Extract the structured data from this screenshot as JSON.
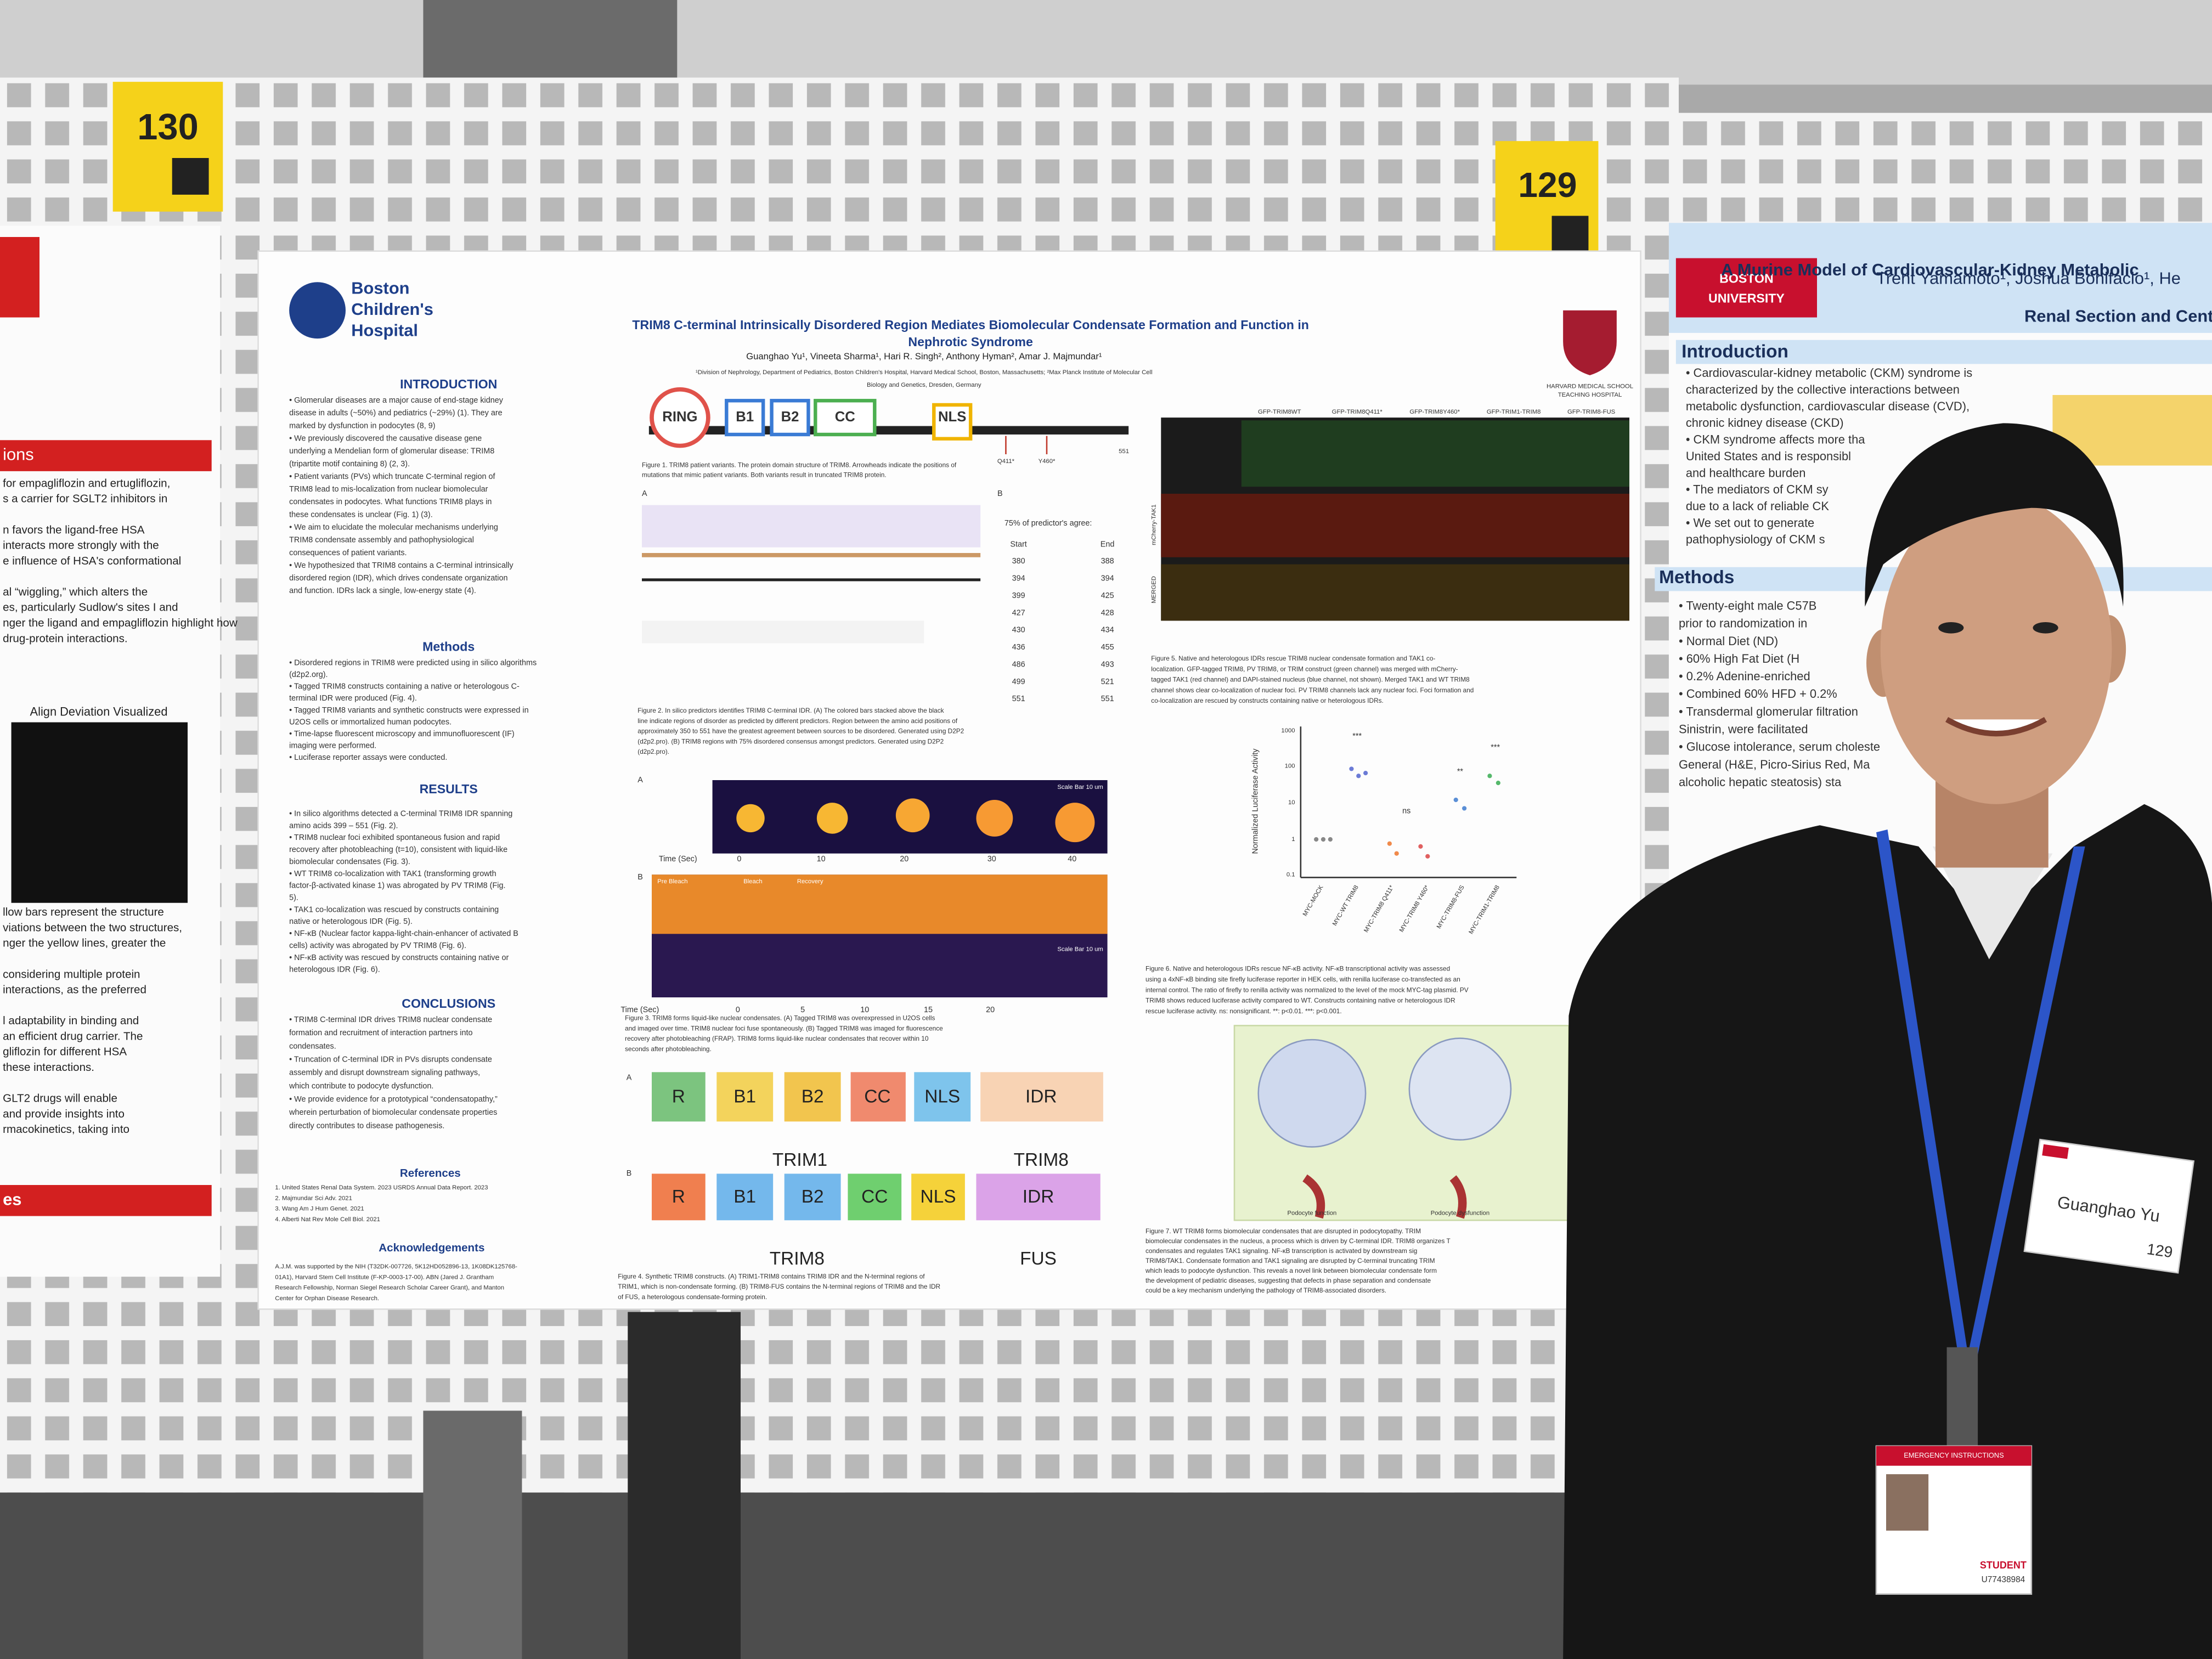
{
  "signs": {
    "left": "130",
    "right": "129"
  },
  "main_poster": {
    "logo": [
      "Boston",
      "Children's",
      "Hospital"
    ],
    "title": [
      "TRIM8 C-terminal Intrinsically Disordered Region Mediates Biomolecular Condensate Formation and Function in",
      "Nephrotic Syndrome"
    ],
    "authors": "Guanghao Yu¹, Vineeta Sharma¹, Hari R. Singh², Anthony Hyman², Amar J. Majmundar¹",
    "affiliation": [
      "¹Division of Nephrology, Department of Pediatrics, Boston Children's Hospital, Harvard Medical School, Boston, Massachusetts; ²Max Planck Institute of Molecular Cell",
      "Biology and Genetics, Dresden, Germany"
    ],
    "harvard": [
      "HARVARD MEDICAL SCHOOL",
      "TEACHING HOSPITAL"
    ],
    "introduction": {
      "heading": "INTRODUCTION",
      "lines": [
        "• Glomerular diseases are a major cause of end-stage kidney",
        "disease in adults (~50%) and pediatrics (~29%) (1). They are",
        "marked by dysfunction in podocytes (8, 9)",
        "• We previously discovered the causative disease gene",
        "underlying a Mendelian form of glomerular disease: TRIM8",
        "(tripartite motif containing 8) (2, 3).",
        "• Patient variants (PVs) which truncate C-terminal region of",
        "TRIM8 lead to mis-localization from nuclear biomolecular",
        "condensates in podocytes. What functions TRIM8 plays in",
        "these condensates is unclear (Fig. 1) (3).",
        "• We aim to elucidate the molecular mechanisms underlying",
        "TRIM8 condensate assembly and pathophysiological",
        "consequences of patient variants.",
        "• We hypothesized that TRIM8 contains a C-terminal intrinsically",
        "disordered region (IDR), which drives condensate organization",
        "and function. IDRs lack a single, low-energy state (4)."
      ]
    },
    "methods": {
      "heading": "Methods",
      "lines": [
        "• Disordered regions in TRIM8 were predicted using in silico algorithms",
        "(d2p2.org).",
        "• Tagged TRIM8 constructs containing a native or heterologous C-",
        "terminal IDR were produced (Fig. 4).",
        "• Tagged TRIM8 variants and synthetic constructs were expressed in",
        "U2OS cells or immortalized human podocytes.",
        "• Time-lapse fluorescent microscopy and immunofluorescent (IF)",
        "imaging were performed.",
        "• Luciferase reporter assays were conducted."
      ]
    },
    "results": {
      "heading": "RESULTS",
      "lines": [
        "• In silico algorithms detected a C-terminal TRIM8 IDR spanning",
        "amino acids 399 – 551 (Fig. 2).",
        "• TRIM8 nuclear foci exhibited spontaneous fusion and rapid",
        "recovery after photobleaching (t=10), consistent with liquid-like",
        "biomolecular condensates (Fig. 3).",
        "• WT TRIM8 co-localization with TAK1 (transforming growth",
        "factor-β-activated kinase 1) was abrogated by PV TRIM8 (Fig.",
        "5).",
        "• TAK1 co-localization was rescued by constructs containing",
        "native or heterologous IDR (Fig. 5).",
        "• NF-κB (Nuclear factor kappa-light-chain-enhancer of activated B",
        "cells) activity was abrogated by PV TRIM8 (Fig. 6).",
        "• NF-κB activity was rescued by constructs containing native or",
        "heterologous IDR (Fig. 6)."
      ]
    },
    "conclusions": {
      "heading": "CONCLUSIONS",
      "lines": [
        "• TRIM8 C-terminal IDR drives TRIM8 nuclear condensate",
        "formation and recruitment of interaction partners into",
        "condensates.",
        "• Truncation of C-terminal IDR in PVs disrupts condensate",
        "assembly and disrupt downstream signaling pathways,",
        "which contribute to podocyte dysfunction.",
        "• We provide evidence for a prototypical “condensatopathy,”",
        "wherein perturbation of biomolecular condensate properties",
        "directly contributes to disease pathogenesis."
      ]
    },
    "references": {
      "heading": "References",
      "lines": [
        "1. United States Renal Data System. 2023 USRDS Annual Data Report. 2023",
        "2. Majmundar Sci Adv. 2021",
        "3. Wang Am J Hum Genet. 2021",
        "4. Alberti Nat Rev Mole Cell Biol. 2021"
      ]
    },
    "acknowledgements": {
      "heading": "Acknowledgements",
      "lines": [
        "A.J.M. was supported by the NIH (T32DK-007726, 5K12HD052896-13, 1K08DK125768-",
        "01A1), Harvard Stem Cell Institute (F-KP-0003-17-00). ABN (Jared J. Grantham",
        "Research Fellowship, Norman Siegel Research Scholar Career Grant), and Manton",
        "Center for Orphan Disease Research."
      ]
    },
    "figure1": {
      "domains": [
        "RING",
        "B1",
        "B2",
        "CC",
        "NLS"
      ],
      "end": "551",
      "variants": [
        "Q411*",
        "Y460*"
      ],
      "caption": [
        "Figure 1. TRIM8 patient variants. The protein domain structure of TRIM8. Arrowheads indicate the positions of",
        "mutations that mimic patient variants. Both variants result in truncated TRIM8 protein."
      ]
    },
    "figure2": {
      "panels": [
        "A",
        "B"
      ],
      "table_title": "75% of predictor's agree:",
      "columns": [
        "Start",
        "End"
      ],
      "rows": [
        [
          "380",
          "388"
        ],
        [
          "394",
          "394"
        ],
        [
          "399",
          "425"
        ],
        [
          "427",
          "428"
        ],
        [
          "430",
          "434"
        ],
        [
          "436",
          "455"
        ],
        [
          "486",
          "493"
        ],
        [
          "499",
          "521"
        ],
        [
          "551",
          "551"
        ]
      ],
      "caption": [
        "Figure 2. In silico predictors identifies TRIM8 C-terminal IDR. (A) The colored bars stacked above the black",
        "line indicate regions of disorder as predicted by different predictors. Region between the amino acid positions of",
        "approximately 350 to 551 have the greatest agreement between sources to be disordered. Generated using D2P2",
        "(d2p2.pro). (B) TRIM8 regions with 75% disordered consensus amongst predictors. Generated using D2P2",
        "(d2p2.pro)."
      ]
    },
    "figure3": {
      "panels": [
        "A",
        "B"
      ],
      "scale_a": "Scale Bar 10 um",
      "scale_b": "Scale Bar 10 um",
      "time_label": "Time (Sec)",
      "times_a": [
        "0",
        "10",
        "20",
        "30",
        "40"
      ],
      "frames_b": [
        "Pre Bleach",
        "Bleach",
        "Recovery"
      ],
      "times_b": [
        "0",
        "5",
        "10",
        "15",
        "20"
      ],
      "caption": [
        "Figure 3. TRIM8 forms liquid-like nuclear condensates. (A) Tagged TRIM8 was overexpressed in U2OS cells",
        "and imaged over time. TRIM8 nuclear foci fuse spontaneously. (B) Tagged TRIM8 was imaged for fluorescence",
        "recovery after photobleaching (FRAP). TRIM8 forms liquid-like nuclear condensates that recover within 10",
        "seconds after photobleaching."
      ]
    },
    "figure4": {
      "panels": [
        "A",
        "B"
      ],
      "row_a": [
        "R",
        "B1",
        "B2",
        "CC",
        "NLS",
        "IDR"
      ],
      "labels_a": [
        "TRIM1",
        "TRIM8"
      ],
      "row_b": [
        "R",
        "B1",
        "B2",
        "CC",
        "NLS",
        "IDR"
      ],
      "labels_b": [
        "TRIM8",
        "FUS"
      ],
      "caption": [
        "Figure 4. Synthetic TRIM8 constructs. (A) TRIM1-TRIM8 contains TRIM8 IDR and the N-terminal regions of",
        "TRIM1, which is non-condensate forming. (B) TRIM8-FUS contains the N-terminal regions of TRIM8 and the IDR",
        "of FUS, a heterologous condensate-forming protein."
      ]
    },
    "figure5": {
      "columns": [
        "GFP-TRIM8WT",
        "GFP-TRIM8Q411*",
        "GFP-TRIM8Y460*",
        "GFP-TRIM1-TRIM8",
        "GFP-TRIM8-FUS"
      ],
      "rows": [
        "mCherry-TAK1",
        "MERGED"
      ],
      "caption": [
        "Figure 5. Native and heterologous IDRs rescue TRIM8 nuclear condensate formation and TAK1 co-",
        "localization. GFP-tagged TRIM8, PV TRIM8, or TRIM construct (green channel) was merged with mCherry-",
        "tagged TAK1 (red channel) and DAPI-stained nucleus (blue channel, not shown). Merged TAK1 and WT TRIM8",
        "channel shows clear co-localization of nuclear foci. PV TRIM8 channels lack any nuclear foci. Foci formation and",
        "co-localization are rescued by constructs containing native or heterologous IDRs."
      ]
    },
    "figure6": {
      "y_label": "Normalized Luciferase Activity",
      "yticks": [
        "1000",
        "100",
        "10",
        "1",
        "0.1"
      ],
      "categories": [
        "MYC-MOCK",
        "MYC-WT TRIM8",
        "MYC-TRIM8 Q411*",
        "MYC-TRIM8 Y460*",
        "MYC-TRIM8-FUS",
        "MYC-TRIM1-TRIM8"
      ],
      "significance": [
        "***",
        "ns",
        "**",
        "***"
      ],
      "caption": [
        "Figure 6. Native and heterologous IDRs rescue NF-κB activity. NF-κB transcriptional activity was assessed",
        "using a 4xNF-κB binding site firefly luciferase reporter in HEK cells, with renilla luciferase co-transfected as an",
        "internal control. The ratio of firefly to renilla activity was normalized to the level of the mock MYC-tag plasmid. PV",
        "TRIM8 shows reduced luciferase activity compared to WT. Constructs containing native or heterologous IDR",
        "rescue luciferase activity. ns: nonsignificant. **: p<0.01. ***: p<0.001."
      ]
    },
    "figure7": {
      "labels": [
        "Podocyte function",
        "Podocyte dysfunction"
      ],
      "caption": [
        "Figure 7. WT TRIM8 forms biomolecular condensates that are disrupted in podocytopathy. TRIM",
        "biomolecular condensates in the nucleus, a process which is driven by C-terminal IDR. TRIM8 organizes T",
        "condensates and regulates TAK1 signaling. NF-κB transcription is activated by downstream sig",
        "TRIM8/TAK1. Condensate formation and TAK1 signaling are disrupted by C-terminal truncating TRIM",
        "which leads to podocyte dysfunction. This reveals a novel link between biomolecular condensate form",
        "the development of pediatric diseases, suggesting that defects in phase separation and condensate",
        "could be a key mechanism underlying the pathology of TRIM8-associated disorders."
      ]
    }
  },
  "right_poster": {
    "logo": [
      "BOSTON",
      "UNIVERSITY"
    ],
    "title": "A Murine Model of Cardiovascular-Kidney Metabolic",
    "authors": "Trent Yamamoto¹, Joshua Bonifacio¹, He",
    "affiliation": "Renal Section and Cent",
    "introduction": {
      "heading": "Introduction",
      "lines": [
        "• Cardiovascular-kidney metabolic (CKM) syndrome is",
        "characterized by the collective interactions between",
        "metabolic dysfunction, cardiovascular disease (CVD),",
        "chronic kidney disease (CKD)",
        "• CKM syndrome affects more tha",
        "United States and is responsibl",
        "and healthcare burden",
        "• The mediators of CKM sy",
        "due to a lack of reliable CK",
        "• We set out to generate",
        "pathophysiology of CKM s"
      ]
    },
    "methods": {
      "heading": "Methods",
      "lines": [
        "• Twenty-eight male C57B",
        "prior to randomization in",
        "• Normal Diet (ND)",
        "• 60% High Fat Diet (H",
        "• 0.2% Adenine-enriched",
        "• Combined 60% HFD + 0.2%",
        "• Transdermal glomerular filtration",
        "Sinistrin, were facilitated",
        "• Glucose intolerance, serum choleste",
        "General (H&E, Picro-Sirius Red, Ma",
        "alcoholic hepatic steatosis) sta"
      ]
    }
  },
  "left_poster": {
    "heading": "ions",
    "lines_top": [
      "for empagliflozin and ertugliflozin,",
      "s a carrier for SGLT2 inhibitors in",
      "",
      "n favors the ligand-free HSA",
      "interacts more strongly with the",
      "e influence of HSA's conformational",
      "",
      "al “wiggling,” which alters the",
      "es, particularly Sudlow's sites I and",
      "nger the ligand and empagliflozin highlight how",
      "drug-protein interactions."
    ],
    "figure_title": "Align Deviation Visualized",
    "lines_bottom": [
      "llow bars represent the structure",
      "viations between the two structures,",
      "nger the yellow lines, greater the",
      "",
      "considering multiple protein",
      "interactions, as the preferred",
      "",
      "l adaptability in binding and",
      "an efficient drug carrier. The",
      "gliflozin for different HSA",
      "these interactions.",
      "",
      "GLT2 drugs will enable",
      "and provide insights into",
      "rmacokinetics, taking into"
    ],
    "footer_heading": "es"
  },
  "badge": {
    "name": "Guanghao Yu",
    "number": "129"
  },
  "id_card": {
    "title": "EMERGENCY INSTRUCTIONS",
    "role": "STUDENT",
    "number": "U77438984"
  }
}
